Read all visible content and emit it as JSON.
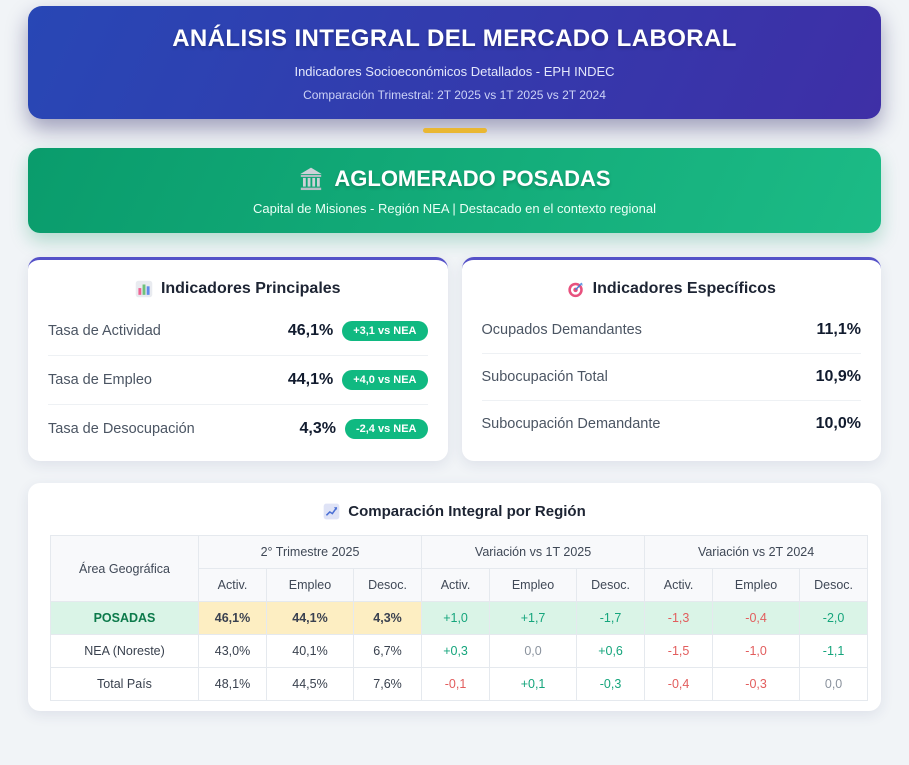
{
  "header": {
    "title": "ANÁLISIS INTEGRAL DEL MERCADO LABORAL",
    "subtitle": "Indicadores Socioeconómicos Detallados - EPH INDEC",
    "comparison": "Comparación Trimestral: 2T 2025 vs 1T 2025 vs 2T 2024"
  },
  "region_banner": {
    "icon": "classical-building-icon",
    "title": "AGLOMERADO POSADAS",
    "subtitle": "Capital de Misiones - Región NEA | Destacado en el contexto regional"
  },
  "cards": {
    "principales": {
      "icon": "bar-chart-icon",
      "title": "Indicadores Principales",
      "rows": [
        {
          "label": "Tasa de Actividad",
          "value": "46,1%",
          "badge": "+3,1 vs NEA"
        },
        {
          "label": "Tasa de Empleo",
          "value": "44,1%",
          "badge": "+4,0 vs NEA"
        },
        {
          "label": "Tasa de Desocupación",
          "value": "4,3%",
          "badge": "-2,4 vs NEA"
        }
      ]
    },
    "especificos": {
      "icon": "target-icon",
      "title": "Indicadores Específicos",
      "rows": [
        {
          "label": "Ocupados Demandantes",
          "value": "11,1%"
        },
        {
          "label": "Subocupación Total",
          "value": "10,9%"
        },
        {
          "label": "Subocupación Demandante",
          "value": "10,0%"
        }
      ]
    }
  },
  "comparison_table": {
    "icon": "chart-increasing-icon",
    "title": "Comparación Integral por Región",
    "area_header": "Área Geográfica",
    "col_groups": [
      {
        "label": "2° Trimestre 2025",
        "cols": [
          "Activ.",
          "Empleo",
          "Desoc."
        ]
      },
      {
        "label": "Variación vs 1T 2025",
        "cols": [
          "Activ.",
          "Empleo",
          "Desoc."
        ]
      },
      {
        "label": "Variación vs 2T 2024",
        "cols": [
          "Activ.",
          "Empleo",
          "Desoc."
        ]
      }
    ],
    "rows": [
      {
        "area": "POSADAS",
        "highlight": true,
        "cells": [
          {
            "text": "46,1%",
            "style": "yellow"
          },
          {
            "text": "44,1%",
            "style": "yellow"
          },
          {
            "text": "4,3%",
            "style": "yellow"
          },
          {
            "text": "+1,0",
            "style": "green"
          },
          {
            "text": "+1,7",
            "style": "green"
          },
          {
            "text": "-1,7",
            "style": "green"
          },
          {
            "text": "-1,3",
            "style": "red"
          },
          {
            "text": "-0,4",
            "style": "red"
          },
          {
            "text": "-2,0",
            "style": "green"
          }
        ]
      },
      {
        "area": "NEA (Noreste)",
        "highlight": false,
        "cells": [
          {
            "text": "43,0%",
            "style": "plain"
          },
          {
            "text": "40,1%",
            "style": "plain"
          },
          {
            "text": "6,7%",
            "style": "plain"
          },
          {
            "text": "+0,3",
            "style": "green"
          },
          {
            "text": "0,0",
            "style": "gray"
          },
          {
            "text": "+0,6",
            "style": "green"
          },
          {
            "text": "-1,5",
            "style": "red"
          },
          {
            "text": "-1,0",
            "style": "red"
          },
          {
            "text": "-1,1",
            "style": "green"
          }
        ]
      },
      {
        "area": "Total País",
        "highlight": false,
        "cells": [
          {
            "text": "48,1%",
            "style": "plain"
          },
          {
            "text": "44,5%",
            "style": "plain"
          },
          {
            "text": "7,6%",
            "style": "plain"
          },
          {
            "text": "-0,1",
            "style": "red"
          },
          {
            "text": "+0,1",
            "style": "green"
          },
          {
            "text": "-0,3",
            "style": "green"
          },
          {
            "text": "-0,4",
            "style": "red"
          },
          {
            "text": "-0,3",
            "style": "red"
          },
          {
            "text": "0,0",
            "style": "gray"
          }
        ]
      }
    ]
  },
  "colors": {
    "accent": "#e9b733",
    "badge": "#10b981",
    "positive": "#15a57c",
    "negative": "#e25d5d",
    "neutral": "#8b939e",
    "row-highlight": "#daf4e7",
    "cell-highlight": "#fdeec2",
    "hero-from": "#2847b5",
    "hero-to": "#3e2fa6",
    "region-from": "#0a9c6c",
    "region-to": "#1cbb86",
    "card-top": "#5551c8",
    "posadas-text": "#0c7a4b"
  }
}
